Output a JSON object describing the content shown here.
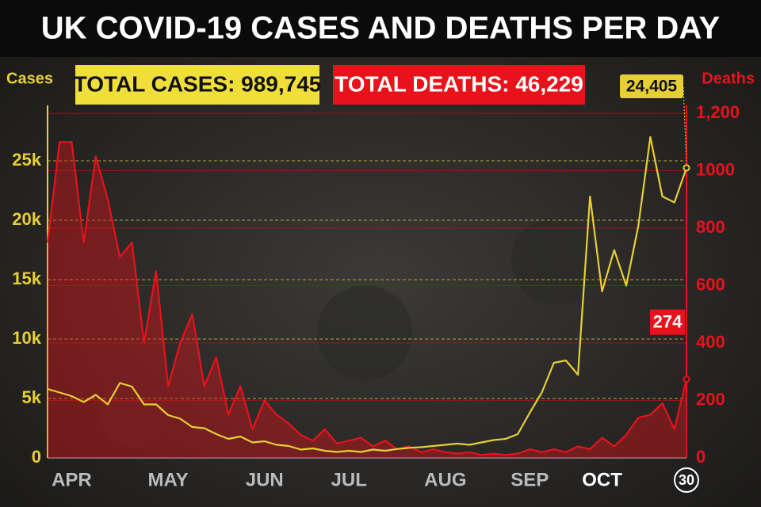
{
  "chart_data": {
    "type": "line",
    "title": "UK COVID-19 CASES AND DEATHS PER DAY",
    "y_label": "Cases",
    "y2_label": "Deaths",
    "annotations": [
      "TOTAL CASES: 989,745",
      "TOTAL DEATHS: 46,229"
    ],
    "categories": [
      null,
      null,
      "APR",
      null,
      null,
      null,
      null,
      null,
      null,
      null,
      "MAY",
      null,
      null,
      null,
      null,
      null,
      null,
      null,
      "JUN",
      null,
      null,
      null,
      null,
      null,
      null,
      "JUL",
      null,
      null,
      null,
      null,
      null,
      null,
      null,
      "AUG",
      null,
      null,
      null,
      null,
      null,
      null,
      "SEP",
      null,
      null,
      null,
      null,
      null,
      "OCT",
      null,
      null,
      null,
      null,
      null,
      null,
      "30"
    ],
    "series": [
      {
        "name": "Cases",
        "color": "#e6cf35",
        "area": false,
        "values": [
          5800,
          5500,
          5200,
          4700,
          5300,
          4500,
          6300,
          6000,
          4500,
          4500,
          3600,
          3300,
          2600,
          2500,
          2000,
          1600,
          1800,
          1300,
          1400,
          1100,
          1000,
          700,
          800,
          600,
          500,
          600,
          500,
          700,
          600,
          750,
          850,
          900,
          1000,
          1100,
          1200,
          1100,
          1300,
          1500,
          1600,
          2000,
          3800,
          5500,
          8000,
          8200,
          7000,
          22000,
          14000,
          17500,
          14500,
          19500,
          27000,
          22000,
          21500,
          24405
        ],
        "value_labels": [
          null,
          null,
          null,
          null,
          null,
          null,
          null,
          null,
          null,
          null,
          null,
          null,
          null,
          null,
          null,
          null,
          null,
          null,
          null,
          null,
          null,
          null,
          null,
          null,
          null,
          null,
          null,
          null,
          null,
          null,
          null,
          null,
          null,
          null,
          null,
          null,
          null,
          null,
          null,
          null,
          null,
          null,
          null,
          null,
          null,
          null,
          null,
          null,
          null,
          null,
          null,
          null,
          null,
          "24,405"
        ]
      },
      {
        "name": "Deaths",
        "color": "#e8121a",
        "area": true,
        "axis": "y2",
        "values": [
          750,
          1100,
          1100,
          750,
          1050,
          900,
          700,
          750,
          400,
          650,
          250,
          400,
          500,
          250,
          350,
          150,
          250,
          100,
          200,
          150,
          120,
          80,
          60,
          100,
          50,
          60,
          70,
          40,
          60,
          30,
          40,
          20,
          30,
          20,
          15,
          20,
          10,
          15,
          10,
          15,
          30,
          20,
          30,
          20,
          40,
          30,
          70,
          40,
          80,
          140,
          150,
          190,
          100,
          274
        ],
        "value_labels": [
          null,
          null,
          null,
          null,
          null,
          null,
          null,
          null,
          null,
          null,
          null,
          null,
          null,
          null,
          null,
          null,
          null,
          null,
          null,
          null,
          null,
          null,
          null,
          null,
          null,
          null,
          null,
          null,
          null,
          null,
          null,
          null,
          null,
          null,
          null,
          null,
          null,
          null,
          null,
          null,
          null,
          null,
          null,
          null,
          null,
          null,
          null,
          null,
          null,
          null,
          null,
          null,
          null,
          "274"
        ]
      }
    ],
    "ylim": [
      0,
      29000
    ],
    "yticks": [
      0,
      {
        "value": 5000,
        "label": "5k"
      },
      {
        "value": 10000,
        "label": "10k"
      },
      {
        "value": 15000,
        "label": "15k"
      },
      {
        "value": 20000,
        "label": "20k"
      },
      {
        "value": 25000,
        "label": "25k"
      }
    ],
    "y2lim": [
      0,
      1200
    ],
    "y2ticks": [
      0,
      200,
      400,
      600,
      800,
      1000,
      {
        "value": 1200,
        "label": "1,200"
      }
    ],
    "grid": true
  }
}
